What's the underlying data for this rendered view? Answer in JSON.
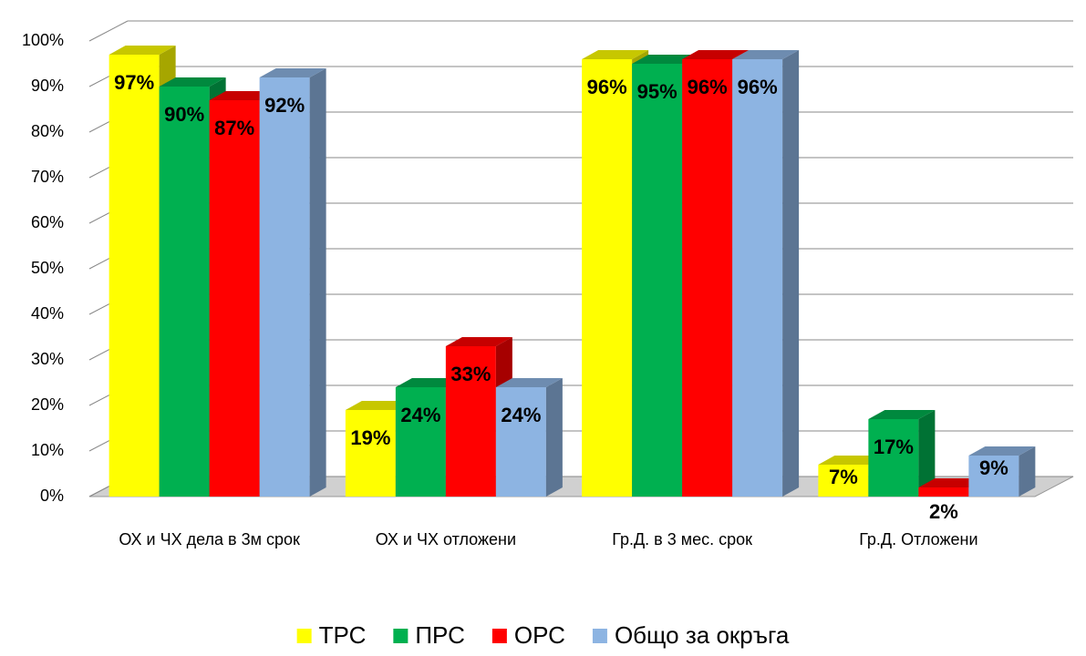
{
  "chart_data": {
    "type": "bar3d",
    "categories": [
      "ОХ и ЧХ дела в 3м срок",
      "ОХ и ЧХ отложени",
      "Гр.Д. в 3 мес. срок",
      "Гр.Д. Отложени"
    ],
    "series": [
      {
        "name": "ТРС",
        "color": "#ffff00",
        "values": [
          97,
          19,
          96,
          7
        ],
        "value_labels": [
          "97%",
          "19%",
          "96%",
          "7%"
        ]
      },
      {
        "name": "ПРС",
        "color": "#00b050",
        "values": [
          90,
          24,
          95,
          17
        ],
        "value_labels": [
          "90%",
          "24%",
          "95%",
          "17%"
        ]
      },
      {
        "name": "ОРС",
        "color": "#ff0000",
        "values": [
          87,
          33,
          96,
          2
        ],
        "value_labels": [
          "87%",
          "33%",
          "96%",
          "2%"
        ]
      },
      {
        "name": "Общо за окръга",
        "color": "#8db4e2",
        "values": [
          92,
          24,
          96,
          9
        ],
        "value_labels": [
          "92%",
          "24%",
          "96%",
          "9%"
        ]
      }
    ],
    "ylim": [
      0,
      100
    ],
    "yticks": [
      {
        "value": 0,
        "label": "0%"
      },
      {
        "value": 10,
        "label": "10%"
      },
      {
        "value": 20,
        "label": "20%"
      },
      {
        "value": 30,
        "label": "30%"
      },
      {
        "value": 40,
        "label": "40%"
      },
      {
        "value": 50,
        "label": "50%"
      },
      {
        "value": 60,
        "label": "60%"
      },
      {
        "value": 70,
        "label": "70%"
      },
      {
        "value": 80,
        "label": "80%"
      },
      {
        "value": 90,
        "label": "90%"
      },
      {
        "value": 100,
        "label": "100%"
      }
    ],
    "grid": true,
    "legend": "bottom"
  }
}
